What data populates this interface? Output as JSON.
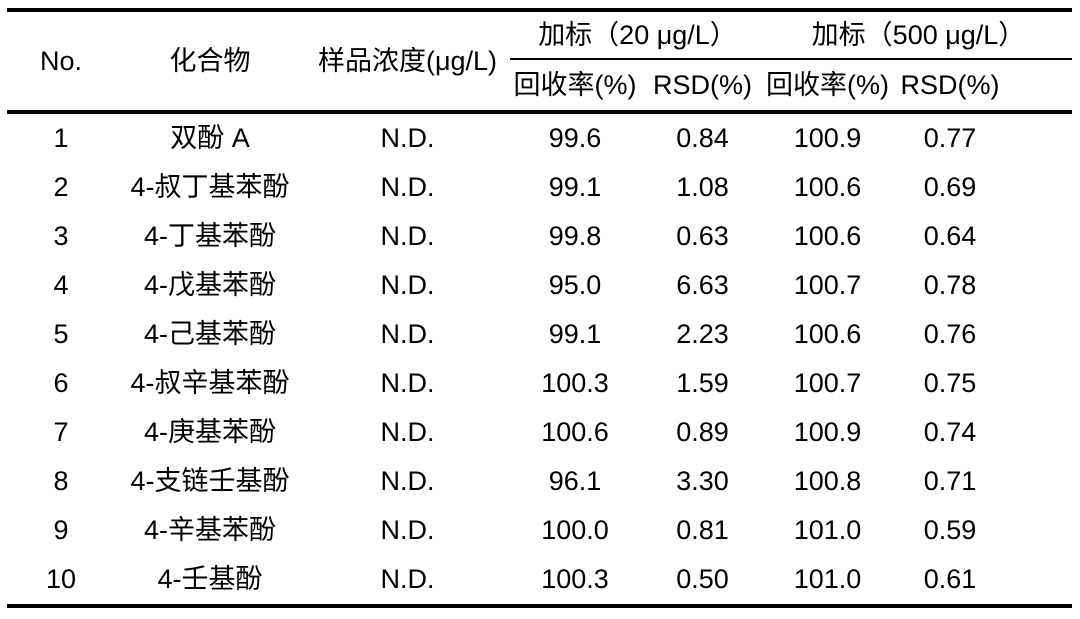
{
  "page": {
    "background_color": "#ffffff",
    "text_color": "#000000",
    "rule_color": "#000000"
  },
  "table": {
    "header": {
      "no": "No.",
      "compound": "化合物",
      "sample_concentration": "样品浓度(μg/L)",
      "spike_20_group": "加标（20 μg/L）",
      "spike_500_group": "加标（500 μg/L）",
      "recovery_20": "回收率(%)",
      "rsd_20": "RSD(%)",
      "recovery_500": "回收率(%)",
      "rsd_500": "RSD(%)"
    },
    "rows": [
      {
        "no": "1",
        "compound": "双酚 A",
        "conc": "N.D.",
        "rec20": "99.6",
        "rsd20": "0.84",
        "rec500": "100.9",
        "rsd500": "0.77"
      },
      {
        "no": "2",
        "compound": "4-叔丁基苯酚",
        "conc": "N.D.",
        "rec20": "99.1",
        "rsd20": "1.08",
        "rec500": "100.6",
        "rsd500": "0.69"
      },
      {
        "no": "3",
        "compound": "4-丁基苯酚",
        "conc": "N.D.",
        "rec20": "99.8",
        "rsd20": "0.63",
        "rec500": "100.6",
        "rsd500": "0.64"
      },
      {
        "no": "4",
        "compound": "4-戊基苯酚",
        "conc": "N.D.",
        "rec20": "95.0",
        "rsd20": "6.63",
        "rec500": "100.7",
        "rsd500": "0.78"
      },
      {
        "no": "5",
        "compound": "4-己基苯酚",
        "conc": "N.D.",
        "rec20": "99.1",
        "rsd20": "2.23",
        "rec500": "100.6",
        "rsd500": "0.76"
      },
      {
        "no": "6",
        "compound": "4-叔辛基苯酚",
        "conc": "N.D.",
        "rec20": "100.3",
        "rsd20": "1.59",
        "rec500": "100.7",
        "rsd500": "0.75"
      },
      {
        "no": "7",
        "compound": "4-庚基苯酚",
        "conc": "N.D.",
        "rec20": "100.6",
        "rsd20": "0.89",
        "rec500": "100.9",
        "rsd500": "0.74"
      },
      {
        "no": "8",
        "compound": "4-支链壬基酚",
        "conc": "N.D.",
        "rec20": "96.1",
        "rsd20": "3.30",
        "rec500": "100.8",
        "rsd500": "0.71"
      },
      {
        "no": "9",
        "compound": "4-辛基苯酚",
        "conc": "N.D.",
        "rec20": "100.0",
        "rsd20": "0.81",
        "rec500": "101.0",
        "rsd500": "0.59"
      },
      {
        "no": "10",
        "compound": "4-壬基酚",
        "conc": "N.D.",
        "rec20": "100.3",
        "rsd20": "0.50",
        "rec500": "101.0",
        "rsd500": "0.61"
      }
    ]
  }
}
